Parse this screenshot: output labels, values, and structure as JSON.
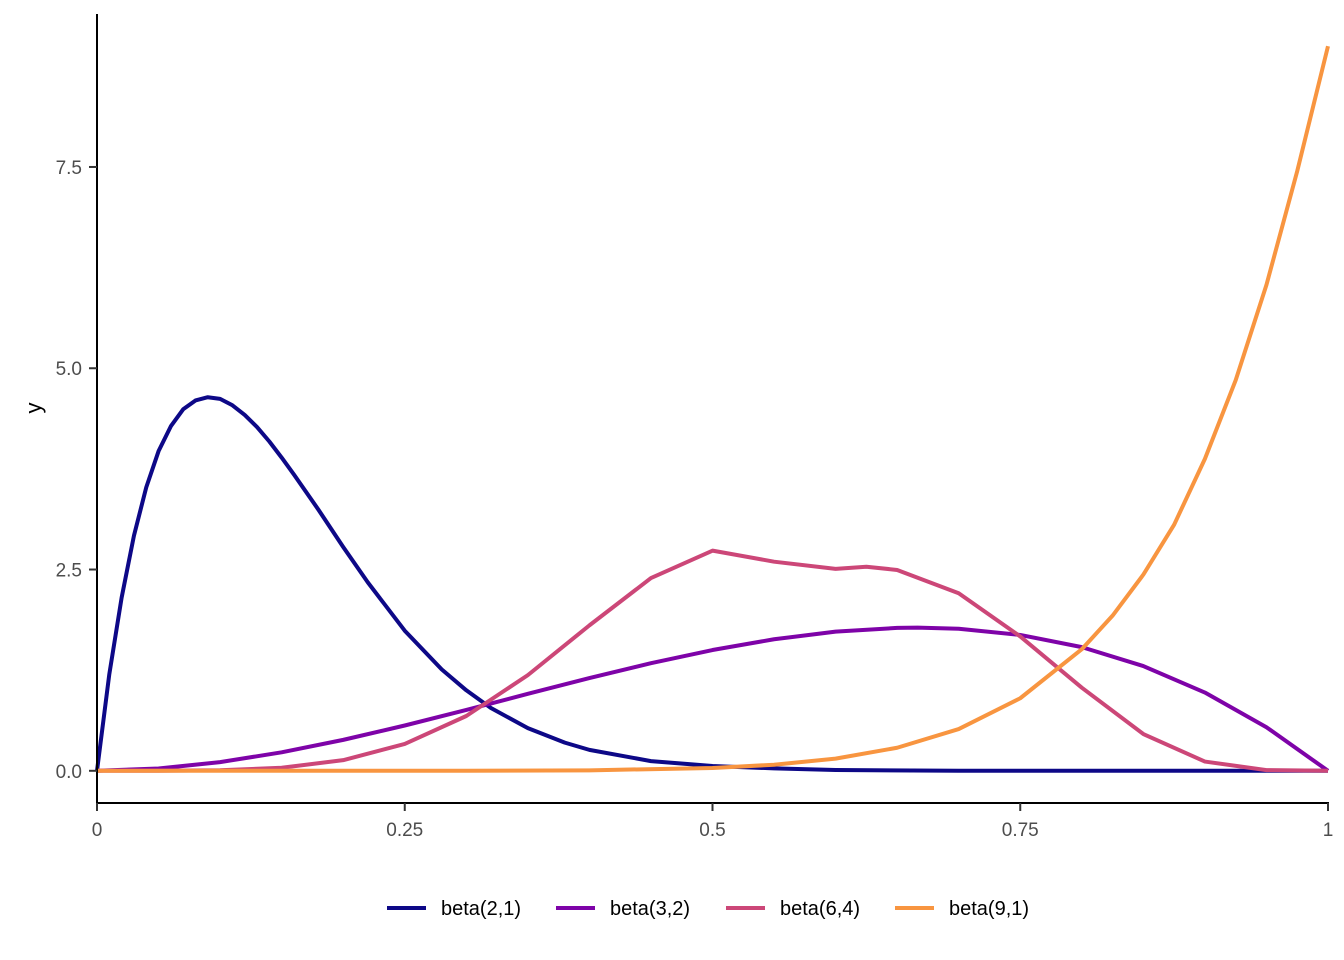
{
  "chart_data": {
    "type": "line",
    "title": "",
    "xlabel": "",
    "ylabel": "y",
    "xlim": [
      0,
      1
    ],
    "ylim": [
      -0.4,
      9.4
    ],
    "x_ticks": [
      0,
      0.25,
      0.5,
      0.75,
      1
    ],
    "x_tick_labels": [
      "0",
      "0.25",
      "0.5",
      "0.75",
      "1"
    ],
    "y_ticks": [
      0,
      2.5,
      5,
      7.5
    ],
    "y_tick_labels": [
      "0.0",
      "2.5",
      "5.0",
      "7.5"
    ],
    "grid": false,
    "legend_position": "bottom",
    "series": [
      {
        "name": "beta(2,1)",
        "color": "#0d0887",
        "x": [
          0,
          0.01,
          0.02,
          0.03,
          0.04,
          0.05,
          0.06,
          0.07,
          0.08,
          0.09,
          0.1,
          0.11,
          0.12,
          0.13,
          0.14,
          0.15,
          0.16,
          0.18,
          0.2,
          0.22,
          0.25,
          0.28,
          0.3,
          0.32,
          0.35,
          0.38,
          0.4,
          0.45,
          0.5,
          0.55,
          0.6,
          0.7,
          0.8,
          0.9,
          1
        ],
        "y": [
          0,
          1.2,
          2.15,
          2.92,
          3.52,
          3.97,
          4.28,
          4.49,
          4.6,
          4.64,
          4.62,
          4.54,
          4.42,
          4.27,
          4.09,
          3.89,
          3.68,
          3.24,
          2.78,
          2.34,
          1.74,
          1.26,
          1.0,
          0.78,
          0.53,
          0.35,
          0.26,
          0.12,
          0.06,
          0.03,
          0.01,
          0,
          0,
          0,
          0
        ]
      },
      {
        "name": "beta(3,2)",
        "color": "#7e03a8",
        "x": [
          0,
          0.05,
          0.1,
          0.15,
          0.2,
          0.25,
          0.3,
          0.35,
          0.4,
          0.45,
          0.5,
          0.55,
          0.6,
          0.65,
          0.6667,
          0.7,
          0.75,
          0.8,
          0.85,
          0.9,
          0.95,
          1
        ],
        "y": [
          0,
          0.0285,
          0.108,
          0.2295,
          0.384,
          0.5625,
          0.756,
          0.9555,
          1.152,
          1.3365,
          1.5,
          1.6335,
          1.728,
          1.7745,
          1.7778,
          1.764,
          1.6875,
          1.536,
          1.3005,
          0.972,
          0.5415,
          0
        ]
      },
      {
        "name": "beta(6,4)",
        "color": "#cc4778",
        "x": [
          0,
          0.05,
          0.1,
          0.15,
          0.2,
          0.25,
          0.3,
          0.35,
          0.4,
          0.45,
          0.5,
          0.55,
          0.6,
          0.625,
          0.65,
          0.7,
          0.75,
          0.8,
          0.85,
          0.9,
          0.95,
          1
        ],
        "y": [
          0,
          0.0003,
          0.0061,
          0.0377,
          0.1321,
          0.3336,
          0.6806,
          1.1883,
          1.8063,
          2.3936,
          2.7344,
          2.5972,
          2.5082,
          2.5349,
          2.4947,
          2.2052,
          1.6686,
          1.0322,
          0.4566,
          0.1148,
          0.0084,
          0
        ]
      },
      {
        "name": "beta(9,1)",
        "color": "#f89540",
        "x": [
          0,
          0.3,
          0.4,
          0.5,
          0.55,
          0.6,
          0.65,
          0.7,
          0.75,
          0.8,
          0.825,
          0.85,
          0.875,
          0.9,
          0.925,
          0.95,
          0.975,
          1
        ],
        "y": [
          0,
          0.0006,
          0.0059,
          0.0352,
          0.0753,
          0.1512,
          0.2861,
          0.5188,
          0.9011,
          1.5099,
          1.9269,
          2.4369,
          3.0569,
          3.8742,
          4.8513,
          6.0356,
          7.4484,
          9.0
        ]
      }
    ]
  }
}
